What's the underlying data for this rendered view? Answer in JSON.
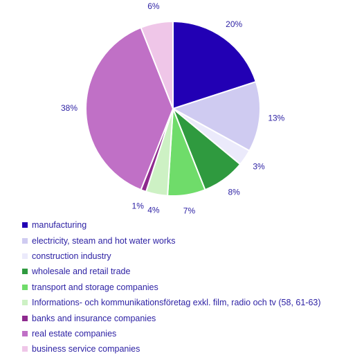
{
  "chart_data": {
    "type": "pie",
    "start_angle_deg": 0,
    "direction": "clockwise",
    "legend_position": "bottom",
    "label_color": "#2b1fa3",
    "series": [
      {
        "name": "manufacturing",
        "value": 20,
        "label": "20%",
        "color": "#2200b4"
      },
      {
        "name": "electricity, steam and hot water works",
        "value": 13,
        "label": "13%",
        "color": "#cfcbf1"
      },
      {
        "name": "construction industry",
        "value": 3,
        "label": "3%",
        "color": "#ebeafb"
      },
      {
        "name": "wholesale and retail trade",
        "value": 8,
        "label": "8%",
        "color": "#2f9a3f"
      },
      {
        "name": "transport and storage companies",
        "value": 7,
        "label": "7%",
        "color": "#6fdc6a"
      },
      {
        "name": "Informations- och kommunikationsföretag  exkl. film, radio och tv (58, 61-63)",
        "value": 4,
        "label": "4%",
        "color": "#cdf1c4"
      },
      {
        "name": "banks and insurance companies",
        "value": 1,
        "label": "1%",
        "color": "#8e2a8e"
      },
      {
        "name": "real estate companies",
        "value": 38,
        "label": "38%",
        "color": "#c070c6"
      },
      {
        "name": "business service companies",
        "value": 6,
        "label": "6%",
        "color": "#efc6e8"
      }
    ]
  }
}
